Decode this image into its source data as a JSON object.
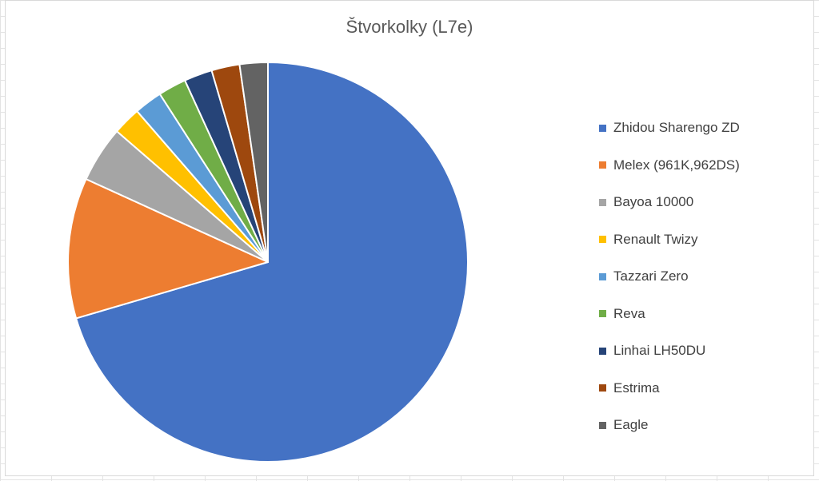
{
  "chart_data": {
    "type": "pie",
    "title": "Štvorkolky (L7e)",
    "legend_position": "right",
    "categories": [
      "Zhidou Sharengo ZD",
      "Melex (961K,962DS)",
      "Bayoa 10000",
      "Renault Twizy",
      "Tazzari Zero",
      "Reva",
      "Linhai LH50DU",
      "Estrima",
      "Eagle"
    ],
    "values": [
      31,
      5,
      2,
      1,
      1,
      1,
      1,
      1,
      1
    ],
    "colors": [
      "#4472C4",
      "#ED7D31",
      "#A5A5A5",
      "#FFC000",
      "#5B9BD5",
      "#70AD47",
      "#264478",
      "#9E480E",
      "#636363"
    ]
  }
}
